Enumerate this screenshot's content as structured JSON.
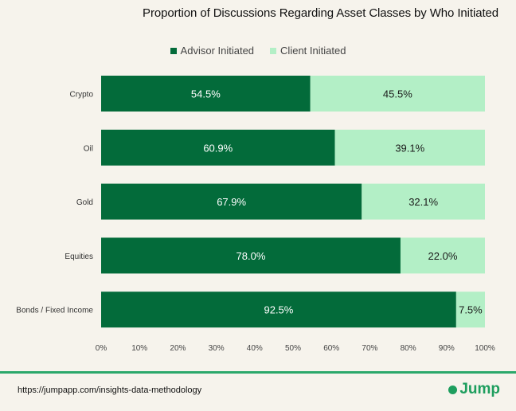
{
  "chart_data": {
    "type": "bar",
    "orientation": "horizontal",
    "stacked": true,
    "title": "Proportion of Discussions Regarding Asset Classes by Who Initiated",
    "categories": [
      "Crypto",
      "Oil",
      "Gold",
      "Equities",
      "Bonds / Fixed Income"
    ],
    "series": [
      {
        "name": "Advisor Initiated",
        "color": "#036b3a",
        "values": [
          54.5,
          60.9,
          67.9,
          78.0,
          92.5
        ]
      },
      {
        "name": "Client Initiated",
        "color": "#b3efc6",
        "values": [
          45.5,
          39.1,
          32.1,
          22.0,
          7.5
        ]
      }
    ],
    "data_labels": [
      [
        "54.5%",
        "60.9%",
        "67.9%",
        "78.0%",
        "92.5%"
      ],
      [
        "45.5%",
        "39.1%",
        "32.1%",
        "22.0%",
        "7.5%"
      ]
    ],
    "xlim": [
      0,
      100
    ],
    "x_ticks": [
      "0%",
      "10%",
      "20%",
      "30%",
      "40%",
      "50%",
      "60%",
      "70%",
      "80%",
      "90%",
      "100%"
    ],
    "legend_position": "top-center",
    "grid": false
  },
  "footer": {
    "url": "https://jumpapp.com/insights-data-methodology",
    "logo_text": "Jump",
    "accent_color": "#2ba86b"
  }
}
